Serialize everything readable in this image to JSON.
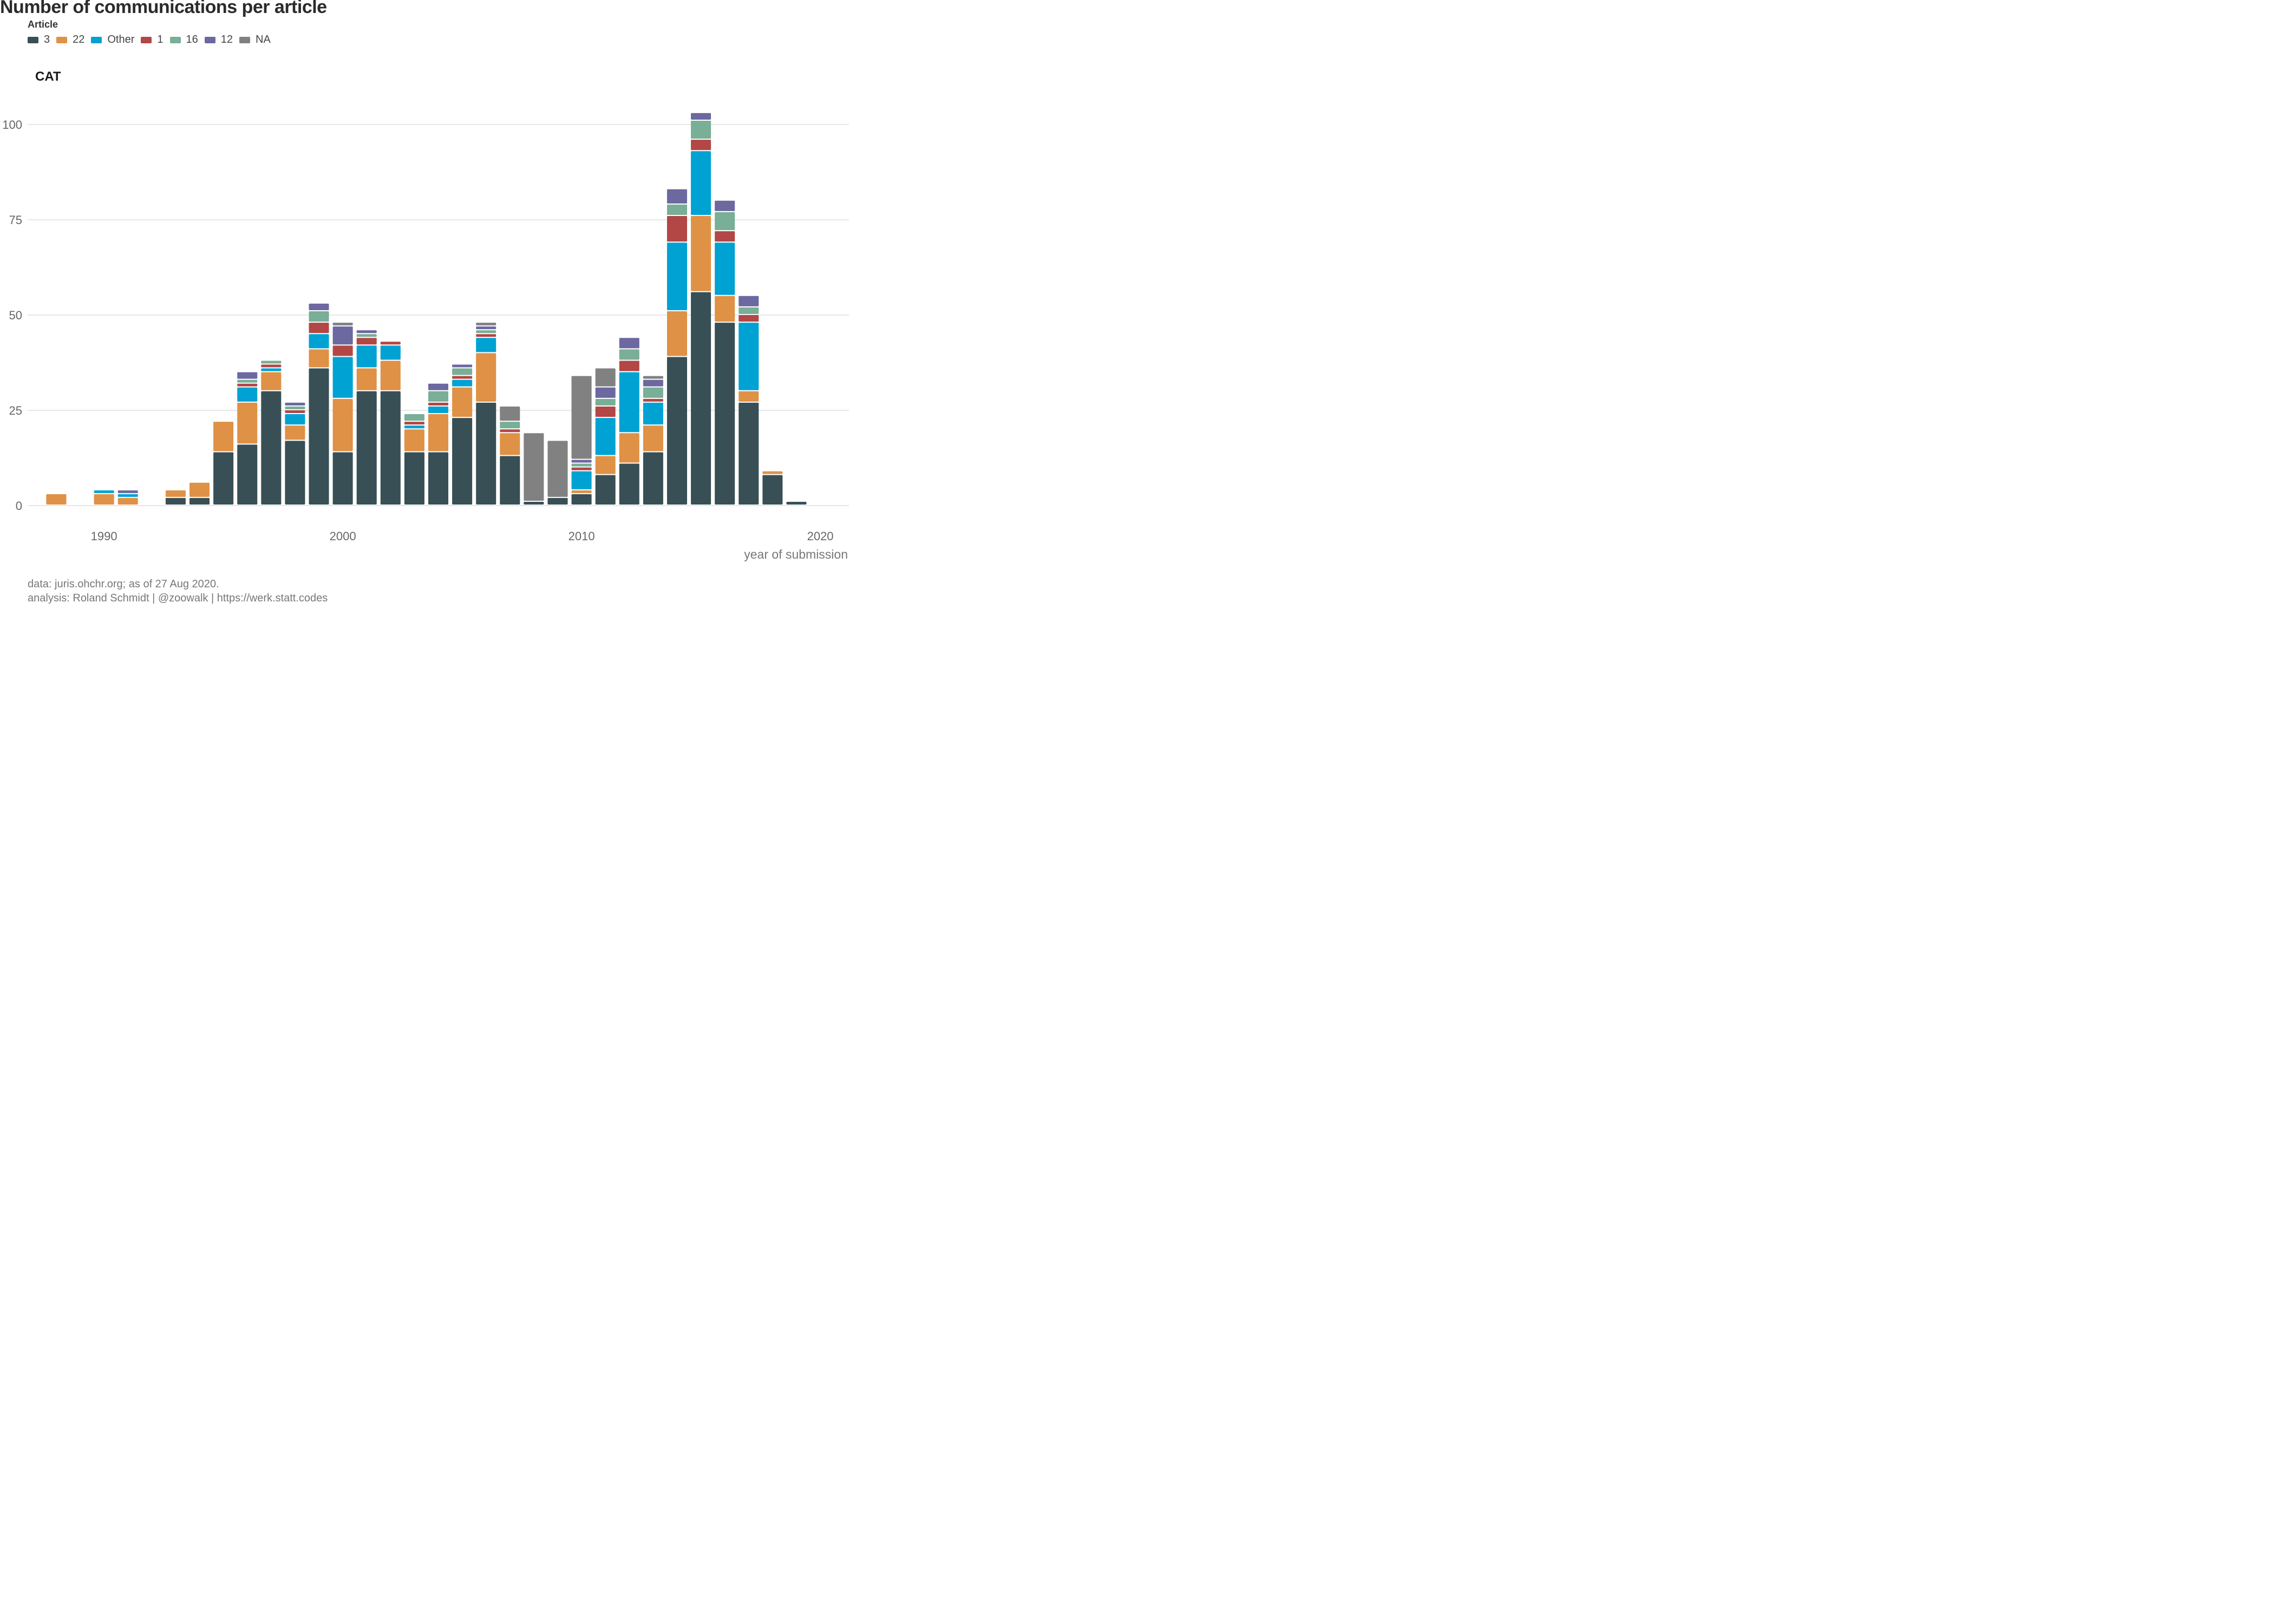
{
  "title": "Number of communications per article",
  "legend": {
    "title": "Article",
    "entries": [
      {
        "label": "3",
        "color": "#384f55"
      },
      {
        "label": "22",
        "color": "#df9146"
      },
      {
        "label": "Other",
        "color": "#00a2d3"
      },
      {
        "label": "1",
        "color": "#b24746"
      },
      {
        "label": "16",
        "color": "#79ae97"
      },
      {
        "label": "12",
        "color": "#6c68a0"
      },
      {
        "label": "NA",
        "color": "#818181"
      }
    ]
  },
  "facet_label": "CAT",
  "caption": {
    "line1": "data: juris.ohchr.org; as of 27 Aug 2020.",
    "line2": "analysis: Roland Schmidt | @zoowalk | https://werk.statt.codes"
  },
  "chart_data": {
    "type": "bar",
    "stacked": true,
    "xlabel": "year of submission",
    "ylabel": "",
    "xlim": [
      1986.8,
      2021.2
    ],
    "ylim": [
      0,
      105
    ],
    "x_ticks": [
      1990,
      2000,
      2010,
      2020
    ],
    "y_ticks": [
      0,
      25,
      50,
      75,
      100
    ],
    "grid": true,
    "legend_position": "top-left",
    "series_order": [
      "3",
      "22",
      "Other",
      "1",
      "16",
      "12",
      "NA"
    ],
    "bars": [
      {
        "year": 1988,
        "values": {
          "22": 3
        }
      },
      {
        "year": 1990,
        "values": {
          "22": 3,
          "Other": 1
        }
      },
      {
        "year": 1991,
        "values": {
          "22": 2,
          "Other": 1,
          "12": 1
        }
      },
      {
        "year": 1993,
        "values": {
          "3": 2,
          "22": 2
        }
      },
      {
        "year": 1994,
        "values": {
          "3": 2,
          "22": 4
        }
      },
      {
        "year": 1995,
        "values": {
          "3": 14,
          "22": 8
        }
      },
      {
        "year": 1996,
        "values": {
          "3": 16,
          "22": 11,
          "Other": 4,
          "1": 1,
          "16": 1,
          "12": 2
        }
      },
      {
        "year": 1997,
        "values": {
          "3": 30,
          "22": 5,
          "Other": 1,
          "1": 1,
          "16": 1
        }
      },
      {
        "year": 1998,
        "values": {
          "3": 17,
          "22": 4,
          "Other": 3,
          "1": 1,
          "16": 1,
          "12": 1
        }
      },
      {
        "year": 1999,
        "values": {
          "3": 36,
          "22": 5,
          "Other": 4,
          "1": 3,
          "16": 3,
          "12": 2
        }
      },
      {
        "year": 2000,
        "values": {
          "3": 14,
          "22": 14,
          "Other": 11,
          "1": 3,
          "12": 5,
          "NA": 1
        }
      },
      {
        "year": 2001,
        "values": {
          "3": 30,
          "22": 6,
          "Other": 6,
          "1": 2,
          "16": 1,
          "12": 1
        }
      },
      {
        "year": 2002,
        "values": {
          "3": 30,
          "22": 8,
          "Other": 4,
          "1": 1
        }
      },
      {
        "year": 2003,
        "values": {
          "3": 14,
          "22": 6,
          "Other": 1,
          "1": 1,
          "16": 2
        }
      },
      {
        "year": 2004,
        "values": {
          "3": 14,
          "22": 10,
          "Other": 2,
          "1": 1,
          "16": 3,
          "12": 2
        }
      },
      {
        "year": 2005,
        "values": {
          "3": 23,
          "22": 8,
          "Other": 2,
          "1": 1,
          "16": 2,
          "12": 1
        }
      },
      {
        "year": 2006,
        "values": {
          "3": 27,
          "22": 13,
          "Other": 4,
          "1": 1,
          "16": 1,
          "12": 1,
          "NA": 1
        }
      },
      {
        "year": 2007,
        "values": {
          "3": 13,
          "22": 6,
          "1": 1,
          "16": 2,
          "NA": 4
        }
      },
      {
        "year": 2008,
        "values": {
          "3": 1,
          "NA": 18
        }
      },
      {
        "year": 2009,
        "values": {
          "3": 2,
          "NA": 15
        }
      },
      {
        "year": 2010,
        "values": {
          "3": 3,
          "22": 1,
          "Other": 5,
          "1": 1,
          "16": 1,
          "12": 1,
          "NA": 22
        }
      },
      {
        "year": 2011,
        "values": {
          "3": 8,
          "22": 5,
          "Other": 10,
          "1": 3,
          "16": 2,
          "12": 3,
          "NA": 5
        }
      },
      {
        "year": 2012,
        "values": {
          "3": 11,
          "22": 8,
          "Other": 16,
          "1": 3,
          "16": 3,
          "12": 3
        }
      },
      {
        "year": 2013,
        "values": {
          "3": 14,
          "22": 7,
          "Other": 6,
          "1": 1,
          "16": 3,
          "12": 2,
          "NA": 1
        }
      },
      {
        "year": 2014,
        "values": {
          "3": 39,
          "22": 12,
          "Other": 18,
          "1": 7,
          "16": 3,
          "12": 4
        }
      },
      {
        "year": 2015,
        "values": {
          "3": 56,
          "22": 20,
          "Other": 17,
          "1": 3,
          "16": 5,
          "12": 2
        }
      },
      {
        "year": 2016,
        "values": {
          "3": 48,
          "22": 7,
          "Other": 14,
          "1": 3,
          "16": 5,
          "12": 3
        }
      },
      {
        "year": 2017,
        "values": {
          "3": 27,
          "22": 3,
          "Other": 18,
          "1": 2,
          "16": 2,
          "12": 3
        }
      },
      {
        "year": 2018,
        "values": {
          "3": 8,
          "22": 1
        }
      },
      {
        "year": 2019,
        "values": {
          "3": 1
        }
      }
    ]
  }
}
